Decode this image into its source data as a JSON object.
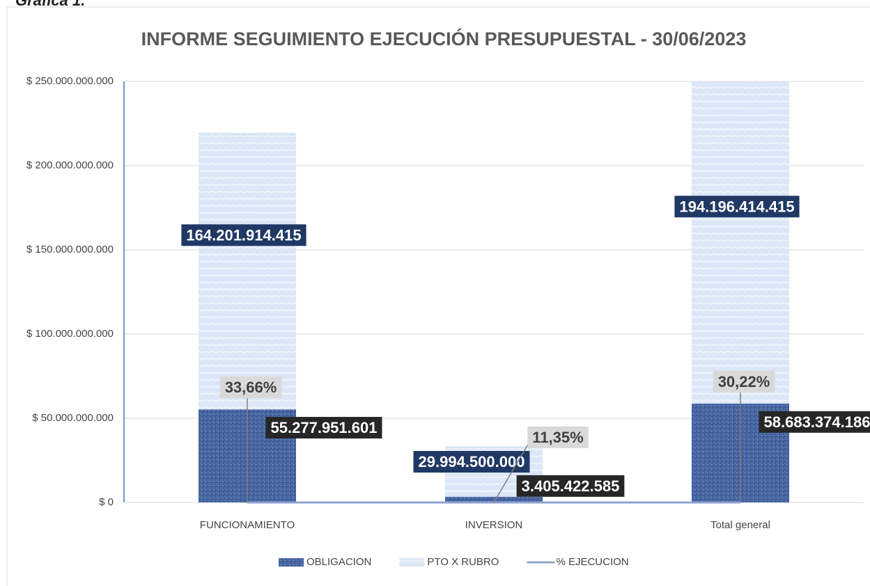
{
  "caption": "Gráfica 1.",
  "chart_data": {
    "type": "stacked_bar_line",
    "title": "INFORME SEGUIMIENTO EJECUCIÓN PRESUPUESTAL - 30/06/2023",
    "categories": [
      "FUNCIONAMIENTO",
      "INVERSION",
      "Total general"
    ],
    "series": [
      {
        "name": "OBLIGACION",
        "type": "bar",
        "color": "#4d6ca8",
        "values": [
          55277951601,
          3405422585,
          58683374186
        ],
        "value_labels": [
          "55.277.951.601",
          "3.405.422.585",
          "58.683.374.186"
        ]
      },
      {
        "name": "PTO X RUBRO",
        "type": "bar",
        "color": "#dbe7f6",
        "values": [
          164201914415,
          29994500000,
          194196414415
        ],
        "value_labels": [
          "164.201.914.415",
          "29.994.500.000",
          "194.196.414.415"
        ]
      },
      {
        "name": "% EJECUCION",
        "type": "line",
        "color": "#8fa5d1",
        "values": [
          0.3366,
          0.1135,
          0.3022
        ],
        "value_labels": [
          "33,66%",
          "11,35%",
          "30,22%"
        ]
      }
    ],
    "ylim": [
      0,
      250000000000
    ],
    "yticks": [
      {
        "value": 0,
        "label": "$ 0"
      },
      {
        "value": 50000000000,
        "label": "$ 50.000.000.000"
      },
      {
        "value": 100000000000,
        "label": "$ 100.000.000.000"
      },
      {
        "value": 150000000000,
        "label": "$ 150.000.000.000"
      },
      {
        "value": 200000000000,
        "label": "$ 200.000.000.000"
      },
      {
        "value": 250000000000,
        "label": "$ 250.000.000.000"
      }
    ],
    "grid": true,
    "legend": "bottom"
  }
}
